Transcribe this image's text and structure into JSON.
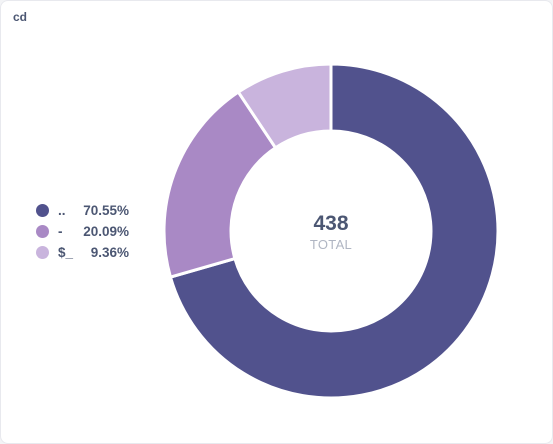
{
  "card": {
    "title": "cd"
  },
  "chart_data": {
    "type": "pie",
    "donut": true,
    "categories": [
      "..",
      "-",
      "$_"
    ],
    "values": [
      309,
      88,
      41
    ],
    "percent_labels": [
      "70.55%",
      "20.09%",
      "9.36%"
    ],
    "colors": [
      "#51528d",
      "#a989c5",
      "#c9b4dd"
    ],
    "total": {
      "value": "438",
      "label": "TOTAL"
    },
    "legend_position": "left"
  }
}
